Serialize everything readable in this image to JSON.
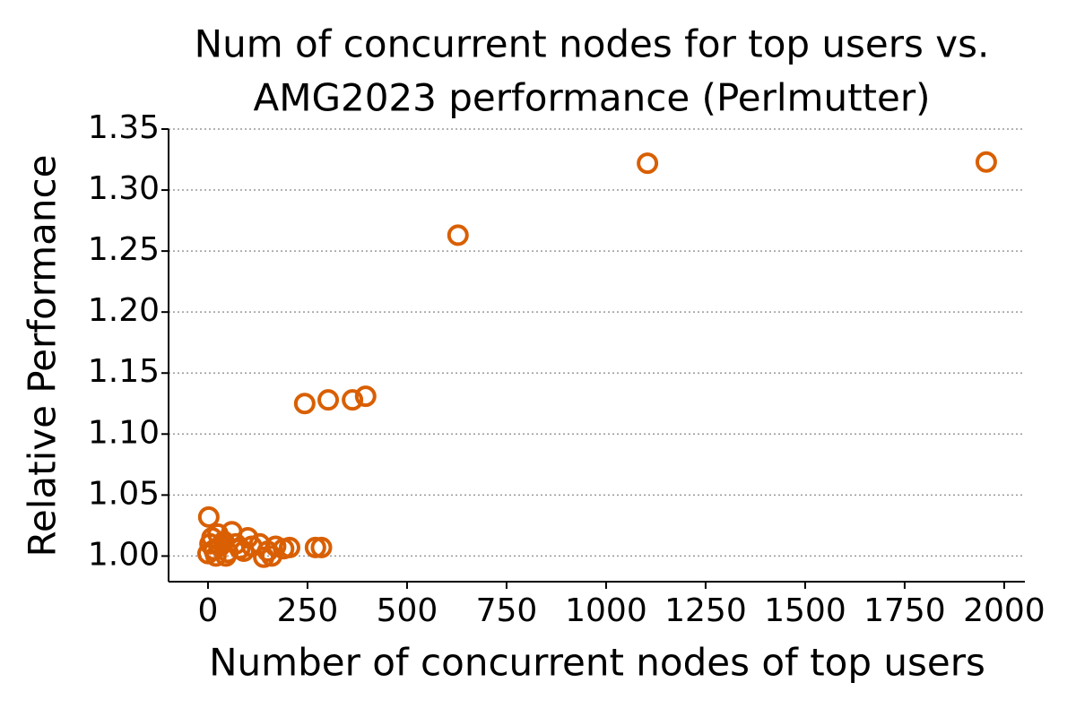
{
  "chart_data": {
    "type": "scatter",
    "title": [
      "Num of concurrent nodes for top users vs.",
      "AMG2023 performance (Perlmutter)"
    ],
    "x_label": "Number of concurrent nodes of top users",
    "y_label": "Relative Performance",
    "color": "#d95f02",
    "grid": "y",
    "x": [
      2,
      1104,
      1955,
      628,
      243,
      302,
      363,
      396,
      5,
      10,
      15,
      20,
      30,
      40,
      50,
      60,
      70,
      80,
      100,
      110,
      130,
      150,
      160,
      170,
      190,
      205,
      270,
      285,
      0,
      25,
      45,
      90,
      140
    ],
    "y": [
      1.032,
      1.322,
      1.323,
      1.263,
      1.125,
      1.128,
      1.128,
      1.131,
      1.01,
      1.015,
      1.005,
      1.0,
      1.008,
      1.012,
      1.003,
      1.02,
      1.01,
      1.006,
      1.015,
      1.008,
      1.01,
      1.004,
      1.0,
      1.008,
      1.006,
      1.007,
      1.007,
      1.007,
      1.002,
      1.018,
      1.0,
      1.004,
      0.999
    ],
    "xlim": [
      -99,
      2052
    ],
    "ylim": [
      0.979,
      1.35
    ],
    "xticks": [
      0,
      250,
      500,
      750,
      1000,
      1250,
      1500,
      1750,
      2000
    ],
    "yticks": [
      {
        "value": 1.0,
        "label": "1.00"
      },
      {
        "value": 1.05,
        "label": "1.05"
      },
      {
        "value": 1.1,
        "label": "1.10"
      },
      {
        "value": 1.15,
        "label": "1.15"
      },
      {
        "value": 1.2,
        "label": "1.20"
      },
      {
        "value": 1.25,
        "label": "1.25"
      },
      {
        "value": 1.3,
        "label": "1.30"
      },
      {
        "value": 1.35,
        "label": "1.35"
      }
    ]
  }
}
